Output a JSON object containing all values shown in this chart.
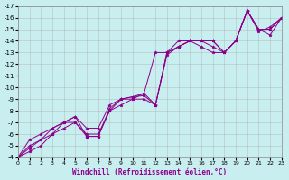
{
  "xlabel": "Windchill (Refroidissement éolien,°C)",
  "bg_color": "#c8eef0",
  "grid_color": "#b0b0b0",
  "line_color": "#8b008b",
  "xlim": [
    0,
    23
  ],
  "ylim": [
    -4,
    -17
  ],
  "xticks": [
    0,
    1,
    2,
    3,
    4,
    5,
    6,
    7,
    8,
    9,
    10,
    11,
    12,
    13,
    14,
    15,
    16,
    17,
    18,
    19,
    20,
    21,
    22,
    23
  ],
  "yticks": [
    -4,
    -5,
    -6,
    -7,
    -8,
    -9,
    -10,
    -11,
    -12,
    -13,
    -14,
    -15,
    -16,
    -17
  ],
  "series": [
    [
      [
        0,
        1,
        2,
        3,
        4,
        5,
        6,
        7,
        8,
        9,
        10,
        11,
        12,
        13,
        14,
        15,
        16,
        17,
        18,
        19,
        20,
        21,
        22,
        23
      ],
      [
        -4,
        -5.5,
        -6,
        -6.5,
        -7,
        -7.5,
        -5.8,
        -5.8,
        -8.2,
        -9,
        -9.2,
        -9.3,
        -8.5,
        -13,
        -13.5,
        -14,
        -14,
        -14,
        -13,
        -14,
        -16.6,
        -15,
        -15,
        -16
      ]
    ],
    [
      [
        0,
        1,
        2,
        3,
        4,
        5,
        6,
        7,
        8,
        9,
        10,
        11,
        12,
        13,
        14,
        15,
        16,
        17,
        18,
        19,
        20,
        21,
        22,
        23
      ],
      [
        -4,
        -4.8,
        -5.5,
        -6.5,
        -7,
        -7,
        -5.8,
        -5.8,
        -8,
        -9,
        -9,
        -9,
        -8.5,
        -12.8,
        -13.5,
        -14,
        -14,
        -14,
        -13,
        -14,
        -16.6,
        -15,
        -14.5,
        -16
      ]
    ],
    [
      [
        0,
        1,
        2,
        3,
        4,
        5,
        6,
        7,
        8,
        9,
        10,
        11,
        12,
        13,
        14,
        15,
        16,
        17,
        18,
        19,
        20,
        21,
        22,
        23
      ],
      [
        -4,
        -5,
        -5.5,
        -6,
        -7,
        -7.5,
        -6.5,
        -6.5,
        -8.5,
        -9,
        -9.2,
        -9.5,
        -13,
        -13,
        -14,
        -14,
        -14,
        -13.5,
        -13,
        -14,
        -16.6,
        -15,
        -15,
        -16
      ]
    ],
    [
      [
        0,
        1,
        2,
        3,
        4,
        5,
        6,
        7,
        8,
        9,
        10,
        11,
        12,
        13,
        14,
        15,
        16,
        17,
        18,
        19,
        20,
        21,
        22,
        23
      ],
      [
        -4,
        -4.5,
        -5,
        -6,
        -6.5,
        -7,
        -6,
        -6,
        -8,
        -8.5,
        -9,
        -9.5,
        -8.5,
        -13,
        -13.5,
        -14,
        -13.5,
        -13,
        -13,
        -14,
        -16.6,
        -14.8,
        -15.2,
        -16
      ]
    ]
  ]
}
